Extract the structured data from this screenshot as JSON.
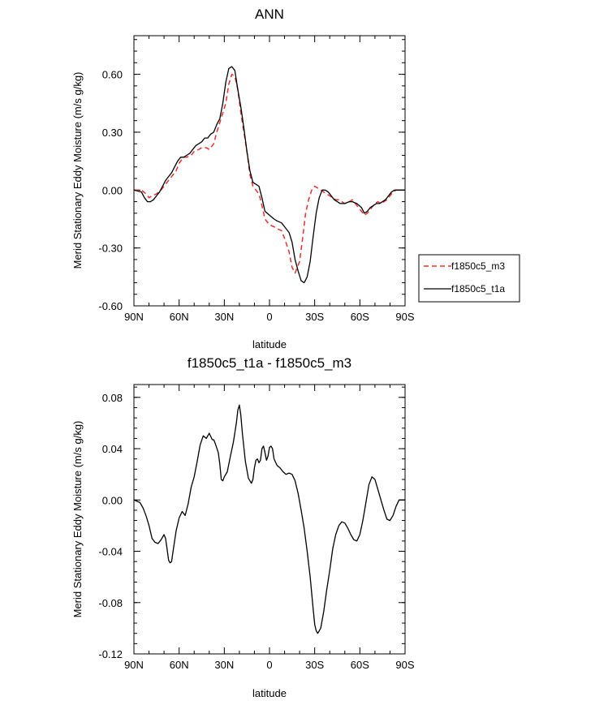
{
  "chart_data": [
    {
      "type": "line",
      "title": "ANN",
      "xlabel": "latitude",
      "ylabel": "Merid Stationary Eddy Moisture (m/s g/kg)",
      "xlim": [
        90,
        -90
      ],
      "ylim": [
        -0.6,
        0.8
      ],
      "x_ticks": [
        90,
        60,
        30,
        0,
        -30,
        -60,
        -90
      ],
      "x_tick_labels": [
        "90N",
        "60N",
        "30N",
        "0",
        "30S",
        "60S",
        "90S"
      ],
      "y_ticks": [
        -0.6,
        -0.3,
        0.0,
        0.3,
        0.6
      ],
      "y_tick_labels": [
        "-0.60",
        "-0.30",
        "0.00",
        "0.30",
        "0.60"
      ],
      "grid": false,
      "legend_placement": "outside-right",
      "series": [
        {
          "name": "f1850c5_m3",
          "color": "#e8302a",
          "dash": "dashed",
          "x": [
            90,
            85,
            82,
            80,
            78,
            75,
            72,
            70,
            67,
            65,
            62,
            60,
            57,
            55,
            52,
            50,
            47,
            45,
            42,
            40,
            37,
            35,
            33,
            31,
            29,
            27,
            25,
            23,
            21,
            19,
            17,
            15,
            13,
            11,
            9,
            7,
            5,
            3,
            0,
            -3,
            -5,
            -8,
            -10,
            -13,
            -15,
            -17,
            -20,
            -22,
            -24,
            -26,
            -28,
            -30,
            -32,
            -34,
            -36,
            -38,
            -40,
            -42,
            -44,
            -46,
            -48,
            -50,
            -53,
            -55,
            -58,
            -61,
            -63,
            -65,
            -68,
            -70,
            -72,
            -74,
            -76,
            -78,
            -80,
            -82,
            -84,
            -86,
            -88,
            -90
          ],
          "y": [
            0.0,
            0.0,
            -0.02,
            -0.04,
            -0.03,
            -0.02,
            0.0,
            0.02,
            0.05,
            0.07,
            0.1,
            0.14,
            0.17,
            0.17,
            0.18,
            0.2,
            0.21,
            0.22,
            0.22,
            0.21,
            0.24,
            0.3,
            0.35,
            0.4,
            0.45,
            0.55,
            0.6,
            0.59,
            0.52,
            0.4,
            0.3,
            0.2,
            0.08,
            0.02,
            0.0,
            -0.02,
            -0.08,
            -0.15,
            -0.18,
            -0.19,
            -0.2,
            -0.21,
            -0.25,
            -0.32,
            -0.4,
            -0.43,
            -0.37,
            -0.25,
            -0.12,
            -0.05,
            0.0,
            0.02,
            0.01,
            0.0,
            -0.01,
            -0.02,
            -0.03,
            -0.04,
            -0.05,
            -0.05,
            -0.06,
            -0.07,
            -0.06,
            -0.05,
            -0.08,
            -0.11,
            -0.13,
            -0.12,
            -0.09,
            -0.07,
            -0.06,
            -0.07,
            -0.06,
            -0.05,
            -0.03,
            -0.01,
            0.0,
            0.0,
            0.0,
            0.0
          ]
        },
        {
          "name": "f1850c5_t1a",
          "color": "#000000",
          "dash": "solid",
          "x": [
            90,
            85,
            83,
            81,
            79,
            77,
            75,
            73,
            71,
            69,
            67,
            65,
            63,
            61,
            59,
            57,
            55,
            53,
            51,
            49,
            47,
            45,
            43,
            41,
            39,
            37,
            35,
            33,
            31,
            29,
            27,
            25,
            23,
            21,
            19,
            17,
            15,
            13,
            11,
            9,
            7,
            5,
            3,
            0,
            -3,
            -5,
            -8,
            -10,
            -13,
            -15,
            -17,
            -19,
            -21,
            -23,
            -25,
            -27,
            -29,
            -31,
            -33,
            -35,
            -37,
            -39,
            -41,
            -43,
            -45,
            -47,
            -50,
            -53,
            -55,
            -58,
            -61,
            -63,
            -65,
            -67,
            -69,
            -71,
            -73,
            -75,
            -77,
            -79,
            -81,
            -83,
            -85,
            -87,
            -90
          ],
          "y": [
            0.0,
            -0.01,
            -0.04,
            -0.06,
            -0.06,
            -0.05,
            -0.03,
            -0.01,
            0.02,
            0.05,
            0.07,
            0.09,
            0.12,
            0.15,
            0.17,
            0.17,
            0.18,
            0.19,
            0.21,
            0.23,
            0.24,
            0.25,
            0.27,
            0.27,
            0.29,
            0.3,
            0.34,
            0.37,
            0.45,
            0.56,
            0.63,
            0.64,
            0.62,
            0.52,
            0.43,
            0.32,
            0.2,
            0.1,
            0.04,
            0.03,
            0.02,
            -0.04,
            -0.11,
            -0.13,
            -0.15,
            -0.16,
            -0.17,
            -0.19,
            -0.22,
            -0.27,
            -0.36,
            -0.42,
            -0.47,
            -0.48,
            -0.45,
            -0.37,
            -0.24,
            -0.12,
            -0.04,
            0.0,
            0.0,
            -0.01,
            -0.03,
            -0.05,
            -0.06,
            -0.07,
            -0.07,
            -0.06,
            -0.06,
            -0.07,
            -0.09,
            -0.12,
            -0.11,
            -0.09,
            -0.08,
            -0.07,
            -0.07,
            -0.06,
            -0.05,
            -0.03,
            -0.01,
            0.0,
            0.0,
            0.0,
            0.0
          ]
        }
      ]
    },
    {
      "type": "line",
      "title": "f1850c5_t1a - f1850c5_m3",
      "xlabel": "latitude",
      "ylabel": "Merid Stationary Eddy Moisture (m/s g/kg)",
      "xlim": [
        90,
        -90
      ],
      "ylim": [
        -0.12,
        0.09
      ],
      "x_ticks": [
        90,
        60,
        30,
        0,
        -30,
        -60,
        -90
      ],
      "x_tick_labels": [
        "90N",
        "60N",
        "30N",
        "0",
        "30S",
        "60S",
        "90S"
      ],
      "y_ticks": [
        -0.12,
        -0.08,
        -0.04,
        0.0,
        0.04,
        0.08
      ],
      "y_tick_labels": [
        "-0.12",
        "-0.08",
        "-0.04",
        "0.00",
        "0.04",
        "0.08"
      ],
      "grid": false,
      "series": [
        {
          "color": "#000000",
          "dash": "solid",
          "x": [
            90,
            86,
            84,
            82,
            80,
            78,
            76,
            74,
            72,
            70,
            69,
            68,
            67,
            66,
            65,
            64,
            62,
            60,
            58,
            56,
            54,
            52,
            50,
            48,
            46,
            44,
            42,
            40,
            38,
            37,
            36,
            34,
            33,
            32,
            31,
            30,
            28,
            26,
            24,
            22,
            21,
            20,
            19,
            18,
            16,
            14,
            12,
            11,
            10,
            9,
            8,
            7,
            6,
            5,
            4,
            3,
            2,
            1,
            0,
            -1,
            -2,
            -3,
            -5,
            -7,
            -9,
            -11,
            -13,
            -15,
            -17,
            -19,
            -21,
            -23,
            -25,
            -27,
            -29,
            -30,
            -31,
            -32,
            -34,
            -36,
            -38,
            -40,
            -42,
            -44,
            -46,
            -48,
            -50,
            -52,
            -54,
            -56,
            -58,
            -60,
            -62,
            -64,
            -66,
            -68,
            -70,
            -72,
            -74,
            -76,
            -78,
            -80,
            -82,
            -84,
            -86,
            -88,
            -90
          ],
          "y": [
            0.0,
            -0.002,
            -0.006,
            -0.012,
            -0.02,
            -0.03,
            -0.033,
            -0.034,
            -0.031,
            -0.027,
            -0.03,
            -0.038,
            -0.047,
            -0.049,
            -0.048,
            -0.04,
            -0.024,
            -0.014,
            -0.009,
            -0.012,
            -0.003,
            0.01,
            0.018,
            0.03,
            0.043,
            0.05,
            0.048,
            0.052,
            0.047,
            0.047,
            0.044,
            0.037,
            0.028,
            0.016,
            0.015,
            0.018,
            0.022,
            0.034,
            0.045,
            0.06,
            0.07,
            0.074,
            0.066,
            0.052,
            0.03,
            0.017,
            0.013,
            0.016,
            0.025,
            0.031,
            0.032,
            0.029,
            0.031,
            0.04,
            0.042,
            0.037,
            0.031,
            0.034,
            0.041,
            0.042,
            0.04,
            0.032,
            0.027,
            0.025,
            0.022,
            0.02,
            0.021,
            0.02,
            0.015,
            0.005,
            -0.008,
            -0.022,
            -0.04,
            -0.06,
            -0.085,
            -0.097,
            -0.102,
            -0.104,
            -0.1,
            -0.087,
            -0.07,
            -0.055,
            -0.038,
            -0.027,
            -0.02,
            -0.017,
            -0.018,
            -0.022,
            -0.027,
            -0.031,
            -0.032,
            -0.027,
            -0.016,
            -0.002,
            0.012,
            0.018,
            0.016,
            0.008,
            0.0,
            -0.008,
            -0.015,
            -0.016,
            -0.012,
            -0.005,
            0.0,
            0.0,
            0.0
          ]
        }
      ]
    }
  ]
}
